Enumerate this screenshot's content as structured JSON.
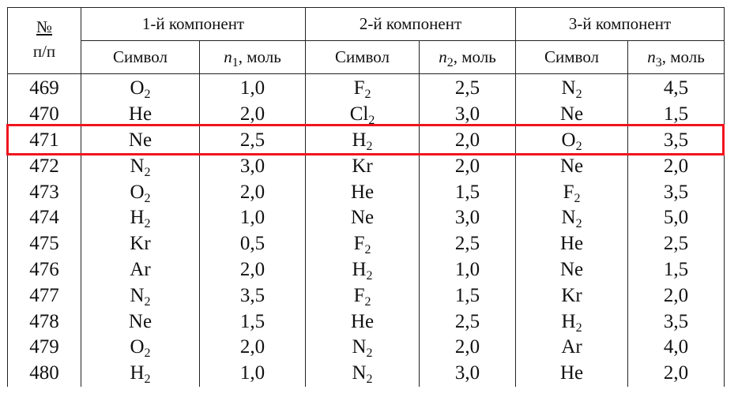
{
  "header": {
    "num_label": "№",
    "num_sub": "п/п",
    "components": [
      "1-й компонент",
      "2-й компонент",
      "3-й компонент"
    ],
    "symbol_label": "Символ",
    "amount_labels": [
      {
        "var": "n",
        "sub": "1",
        "unit": ", моль"
      },
      {
        "var": "n",
        "sub": "2",
        "unit": ", моль"
      },
      {
        "var": "n",
        "sub": "3",
        "unit": ", моль"
      }
    ]
  },
  "highlight_row": "471",
  "highlight_color": "#f0141e",
  "rows": [
    {
      "num": "469",
      "s1": "O",
      "s1sub": "2",
      "n1": "1,0",
      "s2": "F",
      "s2sub": "2",
      "n2": "2,5",
      "s3": "N",
      "s3sub": "2",
      "n3": "4,5"
    },
    {
      "num": "470",
      "s1": "He",
      "s1sub": "",
      "n1": "2,0",
      "s2": "Cl",
      "s2sub": "2",
      "n2": "3,0",
      "s3": "Ne",
      "s3sub": "",
      "n3": "1,5"
    },
    {
      "num": "471",
      "s1": "Ne",
      "s1sub": "",
      "n1": "2,5",
      "s2": "H",
      "s2sub": "2",
      "n2": "2,0",
      "s3": "O",
      "s3sub": "2",
      "n3": "3,5"
    },
    {
      "num": "472",
      "s1": "N",
      "s1sub": "2",
      "n1": "3,0",
      "s2": "Kr",
      "s2sub": "",
      "n2": "2,0",
      "s3": "Ne",
      "s3sub": "",
      "n3": "2,0"
    },
    {
      "num": "473",
      "s1": "O",
      "s1sub": "2",
      "n1": "2,0",
      "s2": "He",
      "s2sub": "",
      "n2": "1,5",
      "s3": "F",
      "s3sub": "2",
      "n3": "3,5"
    },
    {
      "num": "474",
      "s1": "H",
      "s1sub": "2",
      "n1": "1,0",
      "s2": "Ne",
      "s2sub": "",
      "n2": "3,0",
      "s3": "N",
      "s3sub": "2",
      "n3": "5,0"
    },
    {
      "num": "475",
      "s1": "Kr",
      "s1sub": "",
      "n1": "0,5",
      "s2": "F",
      "s2sub": "2",
      "n2": "2,5",
      "s3": "He",
      "s3sub": "",
      "n3": "2,5"
    },
    {
      "num": "476",
      "s1": "Ar",
      "s1sub": "",
      "n1": "2,0",
      "s2": "H",
      "s2sub": "2",
      "n2": "1,0",
      "s3": "Ne",
      "s3sub": "",
      "n3": "1,5"
    },
    {
      "num": "477",
      "s1": "N",
      "s1sub": "2",
      "n1": "3,5",
      "s2": "F",
      "s2sub": "2",
      "n2": "1,5",
      "s3": "Kr",
      "s3sub": "",
      "n3": "2,0"
    },
    {
      "num": "478",
      "s1": "Ne",
      "s1sub": "",
      "n1": "1,5",
      "s2": "He",
      "s2sub": "",
      "n2": "2,5",
      "s3": "H",
      "s3sub": "2",
      "n3": "3,5"
    },
    {
      "num": "479",
      "s1": "O",
      "s1sub": "2",
      "n1": "2,0",
      "s2": "N",
      "s2sub": "2",
      "n2": "2,0",
      "s3": "Ar",
      "s3sub": "",
      "n3": "4,0"
    },
    {
      "num": "480",
      "s1": "H",
      "s1sub": "2",
      "n1": "1,0",
      "s2": "N",
      "s2sub": "2",
      "n2": "3,0",
      "s3": "He",
      "s3sub": "",
      "n3": "2,0"
    }
  ]
}
